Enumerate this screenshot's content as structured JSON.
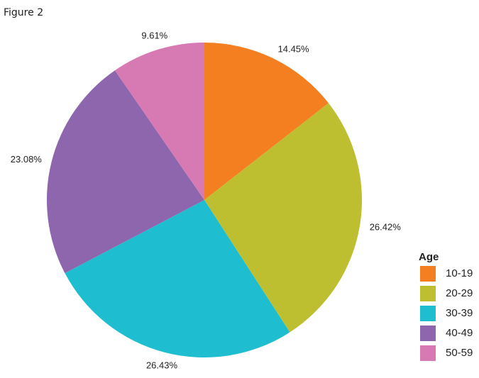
{
  "chart_data": {
    "type": "pie",
    "title": "Figure 2",
    "legend_title": "Age",
    "categories": [
      "10-19",
      "20-29",
      "30-39",
      "40-49",
      "50-59"
    ],
    "values": [
      14.45,
      26.42,
      26.43,
      23.08,
      9.61
    ],
    "value_labels": [
      "14.45%",
      "26.42%",
      "26.43%",
      "23.08%",
      "9.61%"
    ],
    "colors": [
      "#f47f20",
      "#bdbf31",
      "#1ebdd0",
      "#8e66ad",
      "#d77ab3"
    ],
    "legend": "right"
  }
}
